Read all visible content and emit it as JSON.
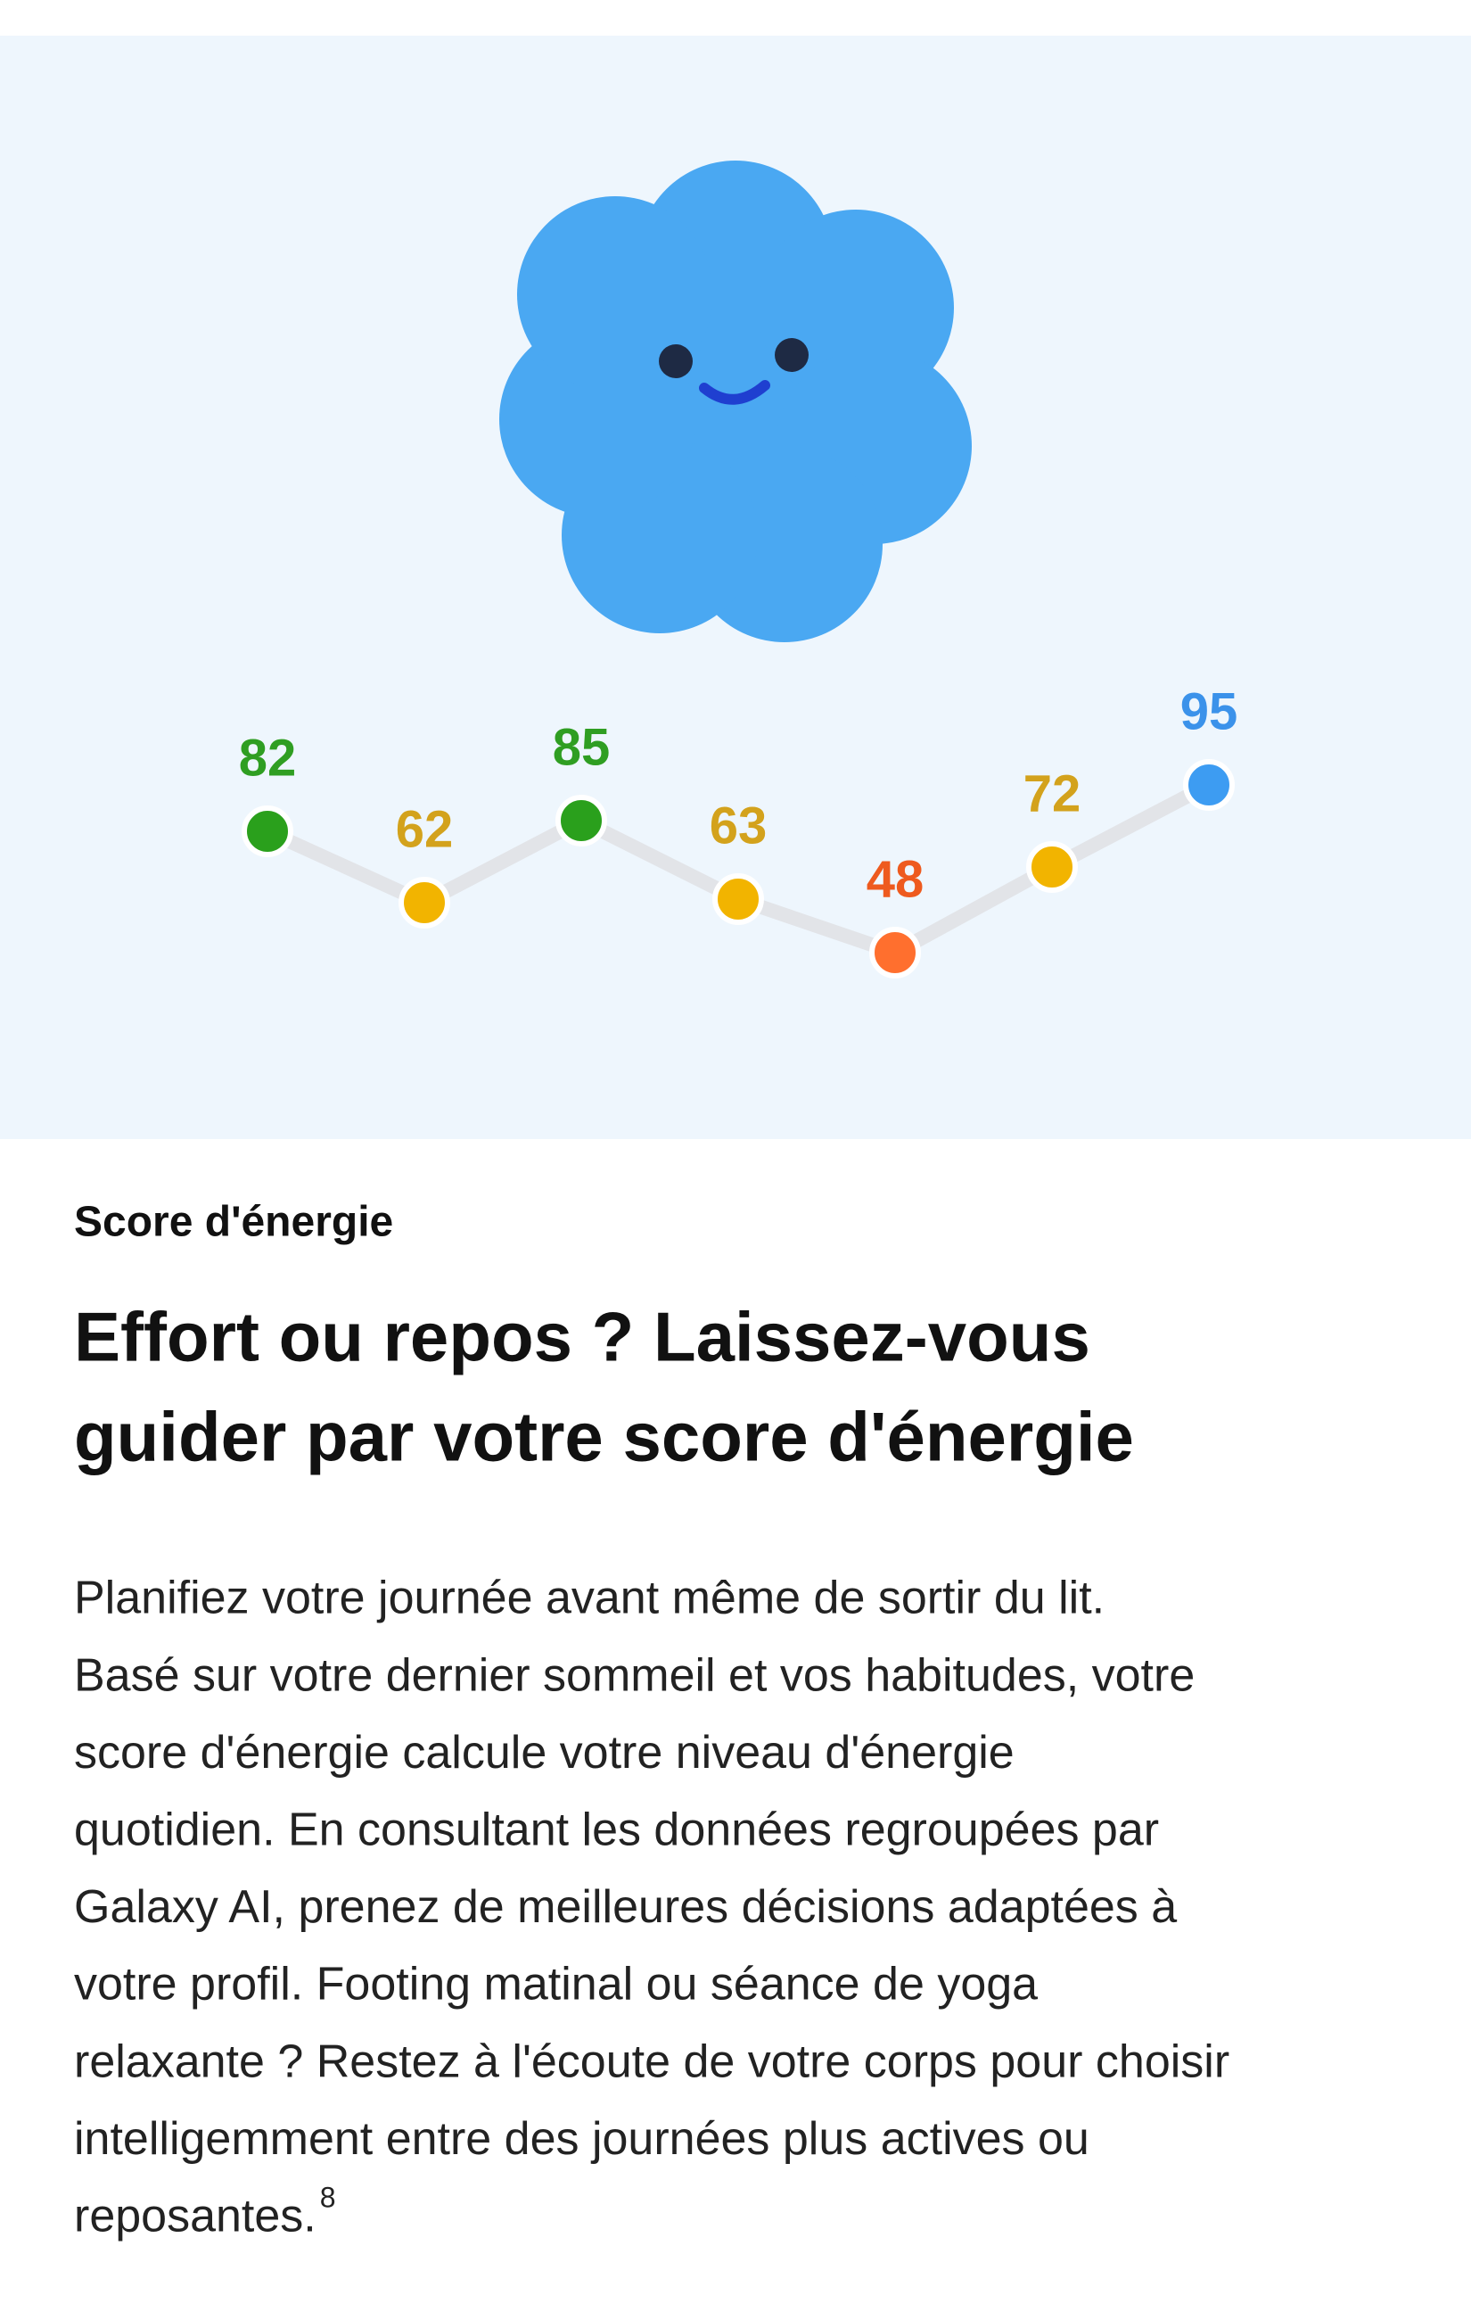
{
  "chart_data": {
    "type": "line",
    "categories": [
      null,
      null,
      null,
      null,
      null,
      null,
      null
    ],
    "values": [
      82,
      62,
      85,
      63,
      48,
      72,
      95
    ],
    "colors": [
      "#2aa01c",
      "#f2b400",
      "#2aa01c",
      "#f2b400",
      "#ff6f2e",
      "#f2b400",
      "#3d9cf2"
    ],
    "label_colors": [
      "#2f9e22",
      "#d3a21c",
      "#2f9e22",
      "#d3a21c",
      "#ee5a1e",
      "#d3a21c",
      "#3b92ea"
    ],
    "line_color": "#e2e4e8",
    "ylim": [
      40,
      100
    ]
  },
  "eyebrow": "Score d'énergie",
  "headline": [
    "Effort ou repos ? Laissez-vous",
    "guider par votre score d'énergie"
  ],
  "body": [
    "Planifiez votre journée avant même de sortir du lit.",
    "Basé sur votre dernier sommeil et vos habitudes, votre",
    "score d'énergie calcule votre niveau d'énergie",
    "quotidien. En consultant les données regroupées par",
    "Galaxy AI, prenez de meilleures décisions adaptées à",
    "votre profil. Footing matinal ou séance de yoga",
    "relaxante ? Restez à l'écoute de votre corps pour choisir",
    "intelligemment entre des journées plus actives ou",
    "reposantes."
  ],
  "footnote": "8"
}
